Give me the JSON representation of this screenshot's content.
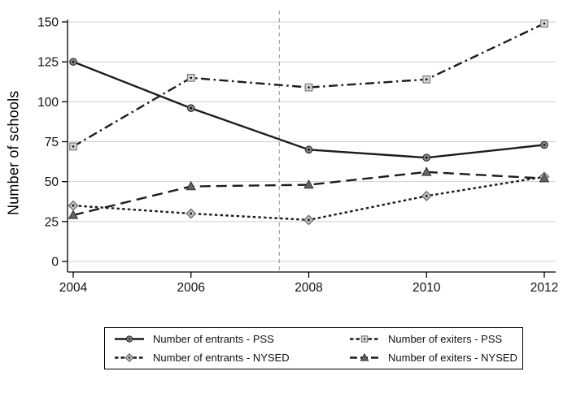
{
  "figure": {
    "ylabel": "Number of schools"
  },
  "chart_data": {
    "type": "line",
    "title": "",
    "xlabel": "",
    "ylabel": "Number of schools",
    "x": [
      2004,
      2006,
      2008,
      2010,
      2012
    ],
    "x_tick_labels": [
      "2004",
      "2006",
      "2008",
      "2010",
      "2012"
    ],
    "y_ticks": [
      0,
      25,
      50,
      75,
      100,
      125,
      150
    ],
    "ylim": [
      0,
      150
    ],
    "xlim": [
      2004,
      2012
    ],
    "grid": "horizontal-only",
    "reference_line_x": 2007.5,
    "legend_position": "bottom-box",
    "gridline_color": "#cfcfcf",
    "reference_line_color": "#9a9a9a",
    "axis_color": "#000000",
    "series": [
      {
        "name": "Number of entrants - PSS",
        "values": [
          125,
          96,
          70,
          65,
          73
        ],
        "line_style": "solid",
        "marker": "circle",
        "marker_fill": "#8a8a8a",
        "marker_stroke": "#2e2e2e",
        "line_color": "#1c1c1c"
      },
      {
        "name": "Number of exiters - PSS",
        "values": [
          72,
          115,
          109,
          114,
          149
        ],
        "line_style": "dash-dot",
        "marker": "square",
        "marker_fill": "#d6d6d6",
        "marker_stroke": "#7d7d7d",
        "line_color": "#1c1c1c"
      },
      {
        "name": "Number of entrants - NYSED",
        "values": [
          35,
          30,
          26,
          41,
          53
        ],
        "line_style": "dotted",
        "marker": "diamond",
        "marker_fill": "#c2c2c2",
        "marker_stroke": "#666666",
        "line_color": "#1c1c1c"
      },
      {
        "name": "Number of exiters - NYSED",
        "values": [
          29,
          47,
          48,
          56,
          52
        ],
        "line_style": "dashed",
        "marker": "triangle",
        "marker_fill": "#636363",
        "marker_stroke": "#333333",
        "line_color": "#1c1c1c"
      }
    ]
  },
  "legend": {
    "display_order": [
      0,
      1,
      2,
      3
    ]
  }
}
